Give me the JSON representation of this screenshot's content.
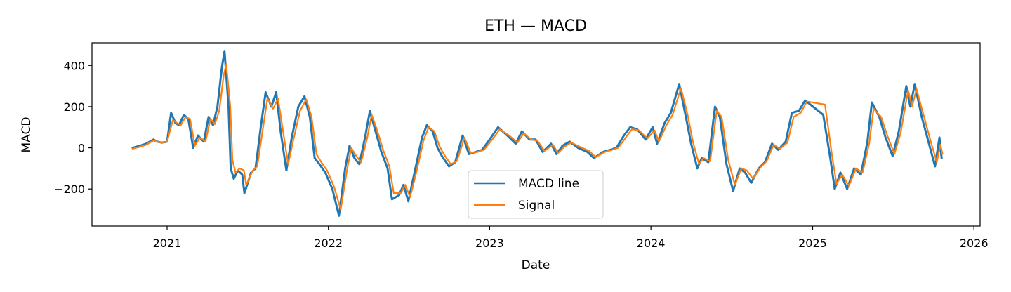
{
  "chart_data": {
    "type": "line",
    "title": "ETH — MACD",
    "xlabel": "Date",
    "ylabel": "MACD",
    "xlim": [
      "2020-07-15",
      "2026-01-15"
    ],
    "ylim": [
      -380,
      510
    ],
    "x_ticks": [
      "2021-01-01",
      "2022-01-01",
      "2023-01-01",
      "2024-01-01",
      "2025-01-01",
      "2026-01-01"
    ],
    "x_tick_labels": [
      "2021",
      "2022",
      "2023",
      "2024",
      "2025",
      "2026"
    ],
    "y_ticks": [
      -200,
      0,
      200,
      400
    ],
    "y_tick_labels": [
      "−200",
      "0",
      "200",
      "400"
    ],
    "grid": false,
    "legend": {
      "position": "bottom-center"
    },
    "series": [
      {
        "name": "MACD line",
        "color": "#1f77b4",
        "points": [
          [
            "2020-10-15",
            0
          ],
          [
            "2020-11-01",
            10
          ],
          [
            "2020-11-15",
            20
          ],
          [
            "2020-12-01",
            40
          ],
          [
            "2020-12-10",
            30
          ],
          [
            "2020-12-20",
            25
          ],
          [
            "2021-01-01",
            30
          ],
          [
            "2021-01-10",
            170
          ],
          [
            "2021-01-20",
            120
          ],
          [
            "2021-01-28",
            110
          ],
          [
            "2021-02-08",
            160
          ],
          [
            "2021-02-18",
            140
          ],
          [
            "2021-03-01",
            0
          ],
          [
            "2021-03-12",
            60
          ],
          [
            "2021-03-25",
            30
          ],
          [
            "2021-04-05",
            150
          ],
          [
            "2021-04-15",
            110
          ],
          [
            "2021-04-25",
            200
          ],
          [
            "2021-05-05",
            390
          ],
          [
            "2021-05-11",
            470
          ],
          [
            "2021-05-20",
            200
          ],
          [
            "2021-05-25",
            -100
          ],
          [
            "2021-06-01",
            -150
          ],
          [
            "2021-06-10",
            -110
          ],
          [
            "2021-06-20",
            -130
          ],
          [
            "2021-06-25",
            -220
          ],
          [
            "2021-07-10",
            -120
          ],
          [
            "2021-07-20",
            -100
          ],
          [
            "2021-08-01",
            100
          ],
          [
            "2021-08-12",
            270
          ],
          [
            "2021-08-25",
            200
          ],
          [
            "2021-09-05",
            270
          ],
          [
            "2021-09-15",
            80
          ],
          [
            "2021-09-28",
            -110
          ],
          [
            "2021-10-10",
            50
          ],
          [
            "2021-10-25",
            200
          ],
          [
            "2021-11-08",
            250
          ],
          [
            "2021-11-20",
            150
          ],
          [
            "2021-12-01",
            -50
          ],
          [
            "2021-12-12",
            -80
          ],
          [
            "2021-12-25",
            -120
          ],
          [
            "2022-01-10",
            -200
          ],
          [
            "2022-01-25",
            -330
          ],
          [
            "2022-02-08",
            -100
          ],
          [
            "2022-02-18",
            10
          ],
          [
            "2022-03-01",
            -50
          ],
          [
            "2022-03-12",
            -80
          ],
          [
            "2022-03-25",
            50
          ],
          [
            "2022-04-05",
            180
          ],
          [
            "2022-04-15",
            100
          ],
          [
            "2022-05-01",
            -20
          ],
          [
            "2022-05-15",
            -100
          ],
          [
            "2022-05-25",
            -250
          ],
          [
            "2022-06-10",
            -230
          ],
          [
            "2022-06-20",
            -180
          ],
          [
            "2022-07-01",
            -260
          ],
          [
            "2022-07-15",
            -120
          ],
          [
            "2022-08-01",
            50
          ],
          [
            "2022-08-12",
            110
          ],
          [
            "2022-08-25",
            80
          ],
          [
            "2022-09-05",
            0
          ],
          [
            "2022-09-15",
            -40
          ],
          [
            "2022-10-01",
            -90
          ],
          [
            "2022-10-15",
            -70
          ],
          [
            "2022-11-01",
            60
          ],
          [
            "2022-11-15",
            -30
          ],
          [
            "2022-12-01",
            -20
          ],
          [
            "2022-12-15",
            -10
          ],
          [
            "2023-01-01",
            40
          ],
          [
            "2023-01-20",
            100
          ],
          [
            "2023-02-10",
            60
          ],
          [
            "2023-03-01",
            20
          ],
          [
            "2023-03-15",
            80
          ],
          [
            "2023-04-01",
            40
          ],
          [
            "2023-04-15",
            40
          ],
          [
            "2023-05-01",
            -20
          ],
          [
            "2023-05-20",
            20
          ],
          [
            "2023-06-01",
            -30
          ],
          [
            "2023-06-15",
            10
          ],
          [
            "2023-07-01",
            30
          ],
          [
            "2023-07-20",
            0
          ],
          [
            "2023-08-10",
            -20
          ],
          [
            "2023-08-25",
            -50
          ],
          [
            "2023-09-15",
            -20
          ],
          [
            "2023-10-01",
            -10
          ],
          [
            "2023-10-15",
            0
          ],
          [
            "2023-11-01",
            60
          ],
          [
            "2023-11-15",
            100
          ],
          [
            "2023-12-01",
            90
          ],
          [
            "2023-12-20",
            40
          ],
          [
            "2024-01-05",
            100
          ],
          [
            "2024-01-15",
            20
          ],
          [
            "2024-02-01",
            120
          ],
          [
            "2024-02-15",
            170
          ],
          [
            "2024-03-05",
            310
          ],
          [
            "2024-03-20",
            150
          ],
          [
            "2024-04-01",
            20
          ],
          [
            "2024-04-15",
            -100
          ],
          [
            "2024-04-25",
            -50
          ],
          [
            "2024-05-10",
            -70
          ],
          [
            "2024-05-25",
            200
          ],
          [
            "2024-06-05",
            150
          ],
          [
            "2024-06-20",
            -80
          ],
          [
            "2024-07-05",
            -210
          ],
          [
            "2024-07-20",
            -100
          ],
          [
            "2024-08-01",
            -120
          ],
          [
            "2024-08-15",
            -170
          ],
          [
            "2024-09-01",
            -100
          ],
          [
            "2024-09-15",
            -70
          ],
          [
            "2024-10-01",
            20
          ],
          [
            "2024-10-15",
            -10
          ],
          [
            "2024-11-01",
            30
          ],
          [
            "2024-11-15",
            170
          ],
          [
            "2024-12-01",
            180
          ],
          [
            "2024-12-15",
            230
          ],
          [
            "2025-01-25",
            160
          ],
          [
            "2025-02-10",
            -50
          ],
          [
            "2025-02-20",
            -200
          ],
          [
            "2025-03-05",
            -120
          ],
          [
            "2025-03-20",
            -200
          ],
          [
            "2025-04-05",
            -100
          ],
          [
            "2025-04-20",
            -130
          ],
          [
            "2025-05-05",
            30
          ],
          [
            "2025-05-15",
            220
          ],
          [
            "2025-06-01",
            150
          ],
          [
            "2025-06-15",
            50
          ],
          [
            "2025-07-01",
            -40
          ],
          [
            "2025-07-15",
            80
          ],
          [
            "2025-08-01",
            300
          ],
          [
            "2025-08-10",
            200
          ],
          [
            "2025-08-20",
            310
          ],
          [
            "2025-09-05",
            150
          ],
          [
            "2025-09-20",
            30
          ],
          [
            "2025-10-05",
            -90
          ],
          [
            "2025-10-15",
            50
          ],
          [
            "2025-10-20",
            -50
          ]
        ]
      },
      {
        "name": "Signal",
        "color": "#ff7f0e",
        "points": [
          [
            "2020-10-15",
            -5
          ],
          [
            "2020-11-01",
            5
          ],
          [
            "2020-11-15",
            15
          ],
          [
            "2020-12-01",
            35
          ],
          [
            "2020-12-10",
            30
          ],
          [
            "2020-12-20",
            25
          ],
          [
            "2021-01-01",
            30
          ],
          [
            "2021-01-14",
            135
          ],
          [
            "2021-01-24",
            120
          ],
          [
            "2021-02-01",
            110
          ],
          [
            "2021-02-12",
            150
          ],
          [
            "2021-02-22",
            140
          ],
          [
            "2021-03-05",
            10
          ],
          [
            "2021-03-16",
            50
          ],
          [
            "2021-03-29",
            30
          ],
          [
            "2021-04-09",
            140
          ],
          [
            "2021-04-19",
            115
          ],
          [
            "2021-04-29",
            180
          ],
          [
            "2021-05-09",
            350
          ],
          [
            "2021-05-15",
            405
          ],
          [
            "2021-05-24",
            200
          ],
          [
            "2021-05-29",
            -60
          ],
          [
            "2021-06-05",
            -120
          ],
          [
            "2021-06-14",
            -100
          ],
          [
            "2021-06-24",
            -110
          ],
          [
            "2021-06-29",
            -180
          ],
          [
            "2021-07-14",
            -110
          ],
          [
            "2021-07-24",
            -90
          ],
          [
            "2021-08-05",
            80
          ],
          [
            "2021-08-16",
            240
          ],
          [
            "2021-08-29",
            190
          ],
          [
            "2021-09-09",
            240
          ],
          [
            "2021-09-19",
            100
          ],
          [
            "2021-10-02",
            -80
          ],
          [
            "2021-10-14",
            40
          ],
          [
            "2021-10-29",
            180
          ],
          [
            "2021-11-12",
            235
          ],
          [
            "2021-11-24",
            150
          ],
          [
            "2021-12-05",
            -30
          ],
          [
            "2021-12-16",
            -70
          ],
          [
            "2021-12-29",
            -110
          ],
          [
            "2022-01-14",
            -190
          ],
          [
            "2022-01-29",
            -300
          ],
          [
            "2022-02-12",
            -110
          ],
          [
            "2022-02-22",
            0
          ],
          [
            "2022-03-05",
            -40
          ],
          [
            "2022-03-16",
            -70
          ],
          [
            "2022-03-29",
            40
          ],
          [
            "2022-04-09",
            160
          ],
          [
            "2022-04-19",
            100
          ],
          [
            "2022-05-05",
            -10
          ],
          [
            "2022-05-19",
            -90
          ],
          [
            "2022-05-29",
            -220
          ],
          [
            "2022-06-14",
            -220
          ],
          [
            "2022-06-24",
            -180
          ],
          [
            "2022-07-05",
            -240
          ],
          [
            "2022-07-19",
            -120
          ],
          [
            "2022-08-05",
            40
          ],
          [
            "2022-08-16",
            100
          ],
          [
            "2022-08-29",
            80
          ],
          [
            "2022-09-09",
            10
          ],
          [
            "2022-09-19",
            -30
          ],
          [
            "2022-10-05",
            -80
          ],
          [
            "2022-10-19",
            -65
          ],
          [
            "2022-11-05",
            50
          ],
          [
            "2022-11-19",
            -25
          ],
          [
            "2022-12-05",
            -20
          ],
          [
            "2022-12-19",
            -10
          ],
          [
            "2023-01-05",
            35
          ],
          [
            "2023-01-24",
            90
          ],
          [
            "2023-02-14",
            60
          ],
          [
            "2023-03-05",
            25
          ],
          [
            "2023-03-19",
            70
          ],
          [
            "2023-04-05",
            40
          ],
          [
            "2023-04-19",
            35
          ],
          [
            "2023-05-05",
            -15
          ],
          [
            "2023-05-24",
            15
          ],
          [
            "2023-06-05",
            -25
          ],
          [
            "2023-06-19",
            5
          ],
          [
            "2023-07-05",
            25
          ],
          [
            "2023-07-24",
            5
          ],
          [
            "2023-08-14",
            -15
          ],
          [
            "2023-08-29",
            -45
          ],
          [
            "2023-09-19",
            -20
          ],
          [
            "2023-10-05",
            -10
          ],
          [
            "2023-10-19",
            0
          ],
          [
            "2023-11-05",
            50
          ],
          [
            "2023-11-19",
            90
          ],
          [
            "2023-12-05",
            85
          ],
          [
            "2023-12-24",
            45
          ],
          [
            "2024-01-09",
            85
          ],
          [
            "2024-01-19",
            30
          ],
          [
            "2024-02-05",
            110
          ],
          [
            "2024-02-19",
            160
          ],
          [
            "2024-03-09",
            290
          ],
          [
            "2024-03-24",
            160
          ],
          [
            "2024-04-05",
            30
          ],
          [
            "2024-04-19",
            -80
          ],
          [
            "2024-04-29",
            -50
          ],
          [
            "2024-05-14",
            -65
          ],
          [
            "2024-05-29",
            180
          ],
          [
            "2024-06-09",
            150
          ],
          [
            "2024-06-24",
            -60
          ],
          [
            "2024-07-09",
            -180
          ],
          [
            "2024-07-24",
            -100
          ],
          [
            "2024-08-05",
            -110
          ],
          [
            "2024-08-19",
            -150
          ],
          [
            "2024-09-05",
            -95
          ],
          [
            "2024-09-19",
            -65
          ],
          [
            "2024-10-05",
            15
          ],
          [
            "2024-10-19",
            -5
          ],
          [
            "2024-11-05",
            25
          ],
          [
            "2024-11-19",
            150
          ],
          [
            "2024-12-05",
            170
          ],
          [
            "2024-12-19",
            225
          ],
          [
            "2025-01-29",
            210
          ],
          [
            "2025-02-14",
            -40
          ],
          [
            "2025-02-24",
            -175
          ],
          [
            "2025-03-09",
            -130
          ],
          [
            "2025-03-24",
            -185
          ],
          [
            "2025-04-09",
            -100
          ],
          [
            "2025-04-24",
            -120
          ],
          [
            "2025-05-09",
            20
          ],
          [
            "2025-05-19",
            190
          ],
          [
            "2025-06-05",
            150
          ],
          [
            "2025-06-19",
            60
          ],
          [
            "2025-07-05",
            -30
          ],
          [
            "2025-07-19",
            70
          ],
          [
            "2025-08-05",
            280
          ],
          [
            "2025-08-14",
            200
          ],
          [
            "2025-08-24",
            285
          ],
          [
            "2025-09-09",
            160
          ],
          [
            "2025-09-24",
            40
          ],
          [
            "2025-10-09",
            -70
          ],
          [
            "2025-10-17",
            15
          ],
          [
            "2025-10-22",
            -30
          ]
        ]
      }
    ]
  }
}
